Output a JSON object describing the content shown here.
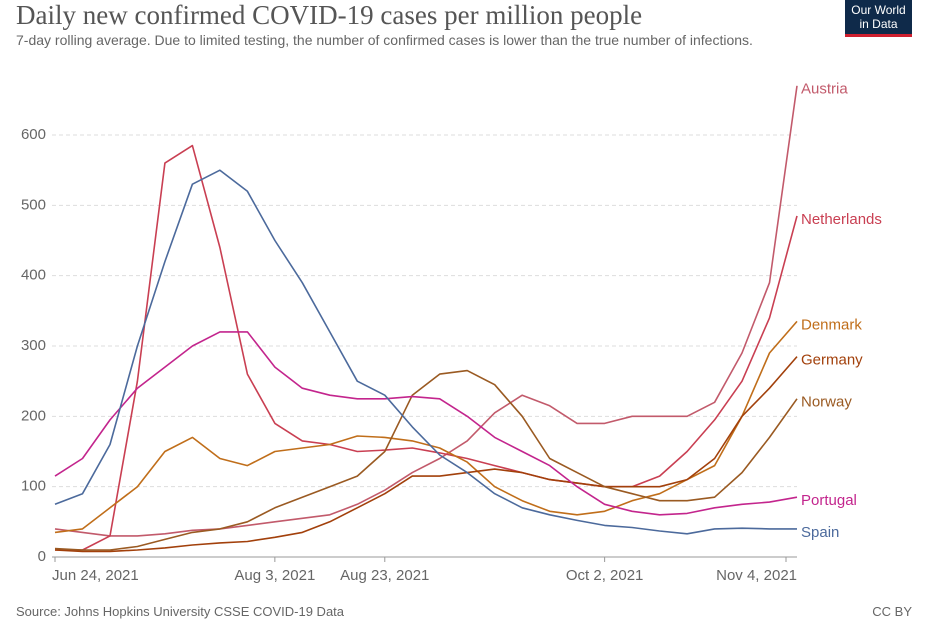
{
  "chart_data": {
    "type": "line",
    "title": "Daily new confirmed COVID-19 cases per million people",
    "subtitle": "7-day rolling average. Due to limited testing, the number of confirmed cases is lower than the true number of infections.",
    "source": "Source: Johns Hopkins University CSSE COVID-19 Data",
    "license": "CC BY",
    "logo": [
      "Our World",
      "in Data"
    ],
    "x": [
      "2021-06-24",
      "2021-06-29",
      "2021-07-04",
      "2021-07-09",
      "2021-07-14",
      "2021-07-19",
      "2021-07-24",
      "2021-07-29",
      "2021-08-03",
      "2021-08-08",
      "2021-08-13",
      "2021-08-18",
      "2021-08-23",
      "2021-08-28",
      "2021-09-02",
      "2021-09-07",
      "2021-09-12",
      "2021-09-17",
      "2021-09-22",
      "2021-09-27",
      "2021-10-02",
      "2021-10-07",
      "2021-10-12",
      "2021-10-17",
      "2021-10-22",
      "2021-10-27",
      "2021-11-01",
      "2021-11-06"
    ],
    "xlim": [
      "2021-06-24",
      "2021-11-06"
    ],
    "xticks": [
      {
        "value": "2021-06-24",
        "label": "Jun 24, 2021"
      },
      {
        "value": "2021-08-03",
        "label": "Aug 3, 2021"
      },
      {
        "value": "2021-08-23",
        "label": "Aug 23, 2021"
      },
      {
        "value": "2021-10-02",
        "label": "Oct 2, 2021"
      },
      {
        "value": "2021-11-04",
        "label": "Nov 4, 2021"
      }
    ],
    "ylim": [
      0,
      600
    ],
    "yticks": [
      0,
      100,
      200,
      300,
      400,
      500,
      600
    ],
    "grid": true,
    "series": [
      {
        "name": "Austria",
        "color": "#c25a6b",
        "values": [
          40,
          35,
          30,
          30,
          33,
          38,
          40,
          45,
          50,
          55,
          60,
          75,
          95,
          120,
          140,
          165,
          205,
          230,
          215,
          190,
          190,
          200,
          200,
          200,
          220,
          290,
          390,
          670
        ]
      },
      {
        "name": "Netherlands",
        "color": "#c93f52",
        "values": [
          10,
          10,
          30,
          250,
          560,
          585,
          440,
          260,
          190,
          165,
          160,
          150,
          152,
          155,
          148,
          140,
          130,
          120,
          110,
          105,
          100,
          100,
          115,
          150,
          195,
          250,
          340,
          485
        ]
      },
      {
        "name": "Denmark",
        "color": "#c06e1a",
        "values": [
          35,
          40,
          70,
          100,
          150,
          170,
          140,
          130,
          150,
          155,
          160,
          172,
          170,
          165,
          155,
          135,
          100,
          80,
          65,
          60,
          65,
          80,
          90,
          110,
          130,
          200,
          290,
          335
        ]
      },
      {
        "name": "Germany",
        "color": "#a2400b",
        "values": [
          10,
          8,
          8,
          10,
          13,
          17,
          20,
          22,
          28,
          35,
          50,
          70,
          90,
          115,
          115,
          120,
          125,
          120,
          110,
          105,
          100,
          100,
          100,
          110,
          140,
          200,
          240,
          285
        ]
      },
      {
        "name": "Norway",
        "color": "#9a5a22",
        "values": [
          12,
          10,
          10,
          15,
          25,
          35,
          40,
          50,
          70,
          85,
          100,
          115,
          150,
          230,
          260,
          265,
          245,
          200,
          140,
          120,
          100,
          90,
          80,
          80,
          85,
          120,
          170,
          225
        ]
      },
      {
        "name": "Portugal",
        "color": "#c3258d",
        "values": [
          115,
          140,
          195,
          240,
          270,
          300,
          320,
          320,
          270,
          240,
          230,
          225,
          225,
          228,
          225,
          200,
          170,
          150,
          130,
          100,
          75,
          65,
          60,
          62,
          70,
          75,
          78,
          85
        ]
      },
      {
        "name": "Spain",
        "color": "#4c6a9c",
        "values": [
          75,
          90,
          160,
          300,
          420,
          530,
          550,
          520,
          450,
          390,
          320,
          250,
          230,
          185,
          145,
          120,
          90,
          70,
          60,
          52,
          45,
          42,
          37,
          33,
          40,
          41,
          40,
          40
        ]
      }
    ]
  }
}
